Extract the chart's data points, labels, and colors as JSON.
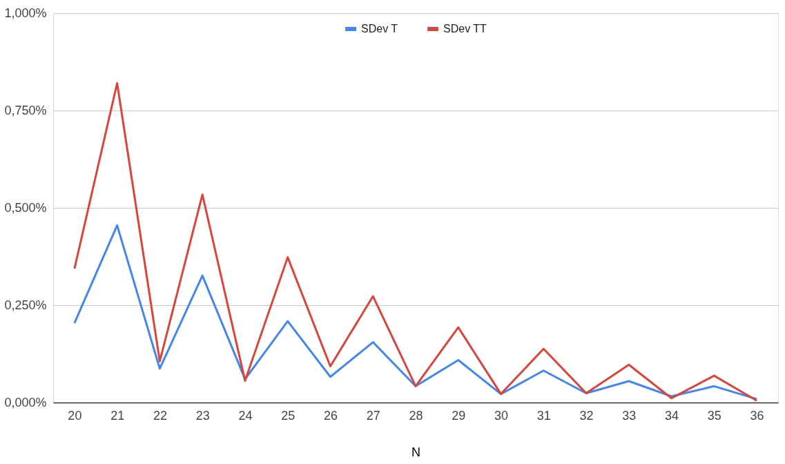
{
  "chart_data": {
    "type": "line",
    "xlabel": "N",
    "categories": [
      "20",
      "21",
      "22",
      "23",
      "24",
      "25",
      "26",
      "27",
      "28",
      "29",
      "30",
      "31",
      "32",
      "33",
      "34",
      "35",
      "36"
    ],
    "series": [
      {
        "name": "SDev T",
        "color": "#4285f4",
        "values": [
          0.204,
          0.455,
          0.087,
          0.326,
          0.06,
          0.209,
          0.066,
          0.155,
          0.042,
          0.109,
          0.022,
          0.082,
          0.024,
          0.055,
          0.016,
          0.042,
          0.009
        ]
      },
      {
        "name": "SDev TT",
        "color": "#db4437",
        "values": [
          0.344,
          0.82,
          0.106,
          0.534,
          0.056,
          0.373,
          0.093,
          0.273,
          0.042,
          0.193,
          0.022,
          0.138,
          0.024,
          0.097,
          0.011,
          0.069,
          0.005
        ]
      }
    ],
    "ylim": [
      0,
      1
    ],
    "yticks": [
      {
        "value": 0,
        "label": "0,000%"
      },
      {
        "value": 0.25,
        "label": "0,250%"
      },
      {
        "value": 0.5,
        "label": "0,500%"
      },
      {
        "value": 0.75,
        "label": "0,750%"
      },
      {
        "value": 1,
        "label": "1,000%"
      }
    ],
    "grid": "y",
    "legend": "top",
    "marker": "none",
    "line_style": "solid"
  }
}
